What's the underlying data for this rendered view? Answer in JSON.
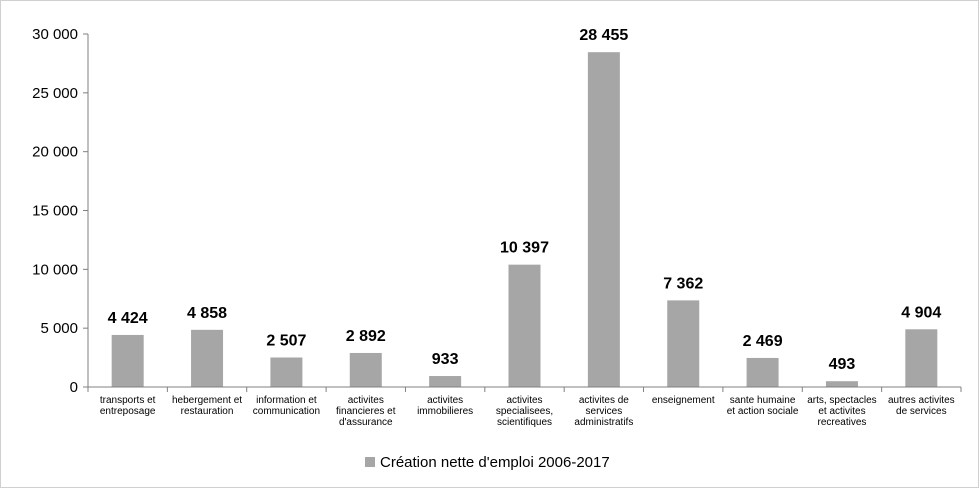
{
  "chart_data": {
    "type": "bar",
    "categories": [
      [
        "transports et",
        "entreposage"
      ],
      [
        "hebergement et",
        "restauration"
      ],
      [
        "information et",
        "communication"
      ],
      [
        "activites",
        "financieres et",
        "d'assurance"
      ],
      [
        "activites",
        "immobilieres"
      ],
      [
        "activites",
        "specialisees,",
        "scientifiques"
      ],
      [
        "activites de",
        "services",
        "administratifs"
      ],
      [
        "enseignement"
      ],
      [
        "sante humaine",
        "et action sociale"
      ],
      [
        "arts, spectacles",
        "et activites",
        "recreatives"
      ],
      [
        "autres activites",
        "de services"
      ]
    ],
    "series": [
      {
        "name": "Création nette d'emploi 2006-2017",
        "values": [
          4424,
          4858,
          2507,
          2892,
          933,
          10397,
          28455,
          7362,
          2469,
          493,
          4904
        ],
        "labels": [
          "4 424",
          "4 858",
          "2 507",
          "2 892",
          "933",
          "10 397",
          "28 455",
          "7 362",
          "2 469",
          "493",
          "4 904"
        ]
      }
    ],
    "yticks": [
      {
        "value": 0,
        "label": "0"
      },
      {
        "value": 5000,
        "label": "5 000"
      },
      {
        "value": 10000,
        "label": "10 000"
      },
      {
        "value": 15000,
        "label": "15 000"
      },
      {
        "value": 20000,
        "label": "20 000"
      },
      {
        "value": 25000,
        "label": "25 000"
      },
      {
        "value": 30000,
        "label": "30 000"
      }
    ],
    "ylim": [
      0,
      30000
    ],
    "grid": false,
    "legend_position": "bottom",
    "bar_color": "#a6a6a6",
    "title": "",
    "xlabel": "",
    "ylabel": ""
  }
}
